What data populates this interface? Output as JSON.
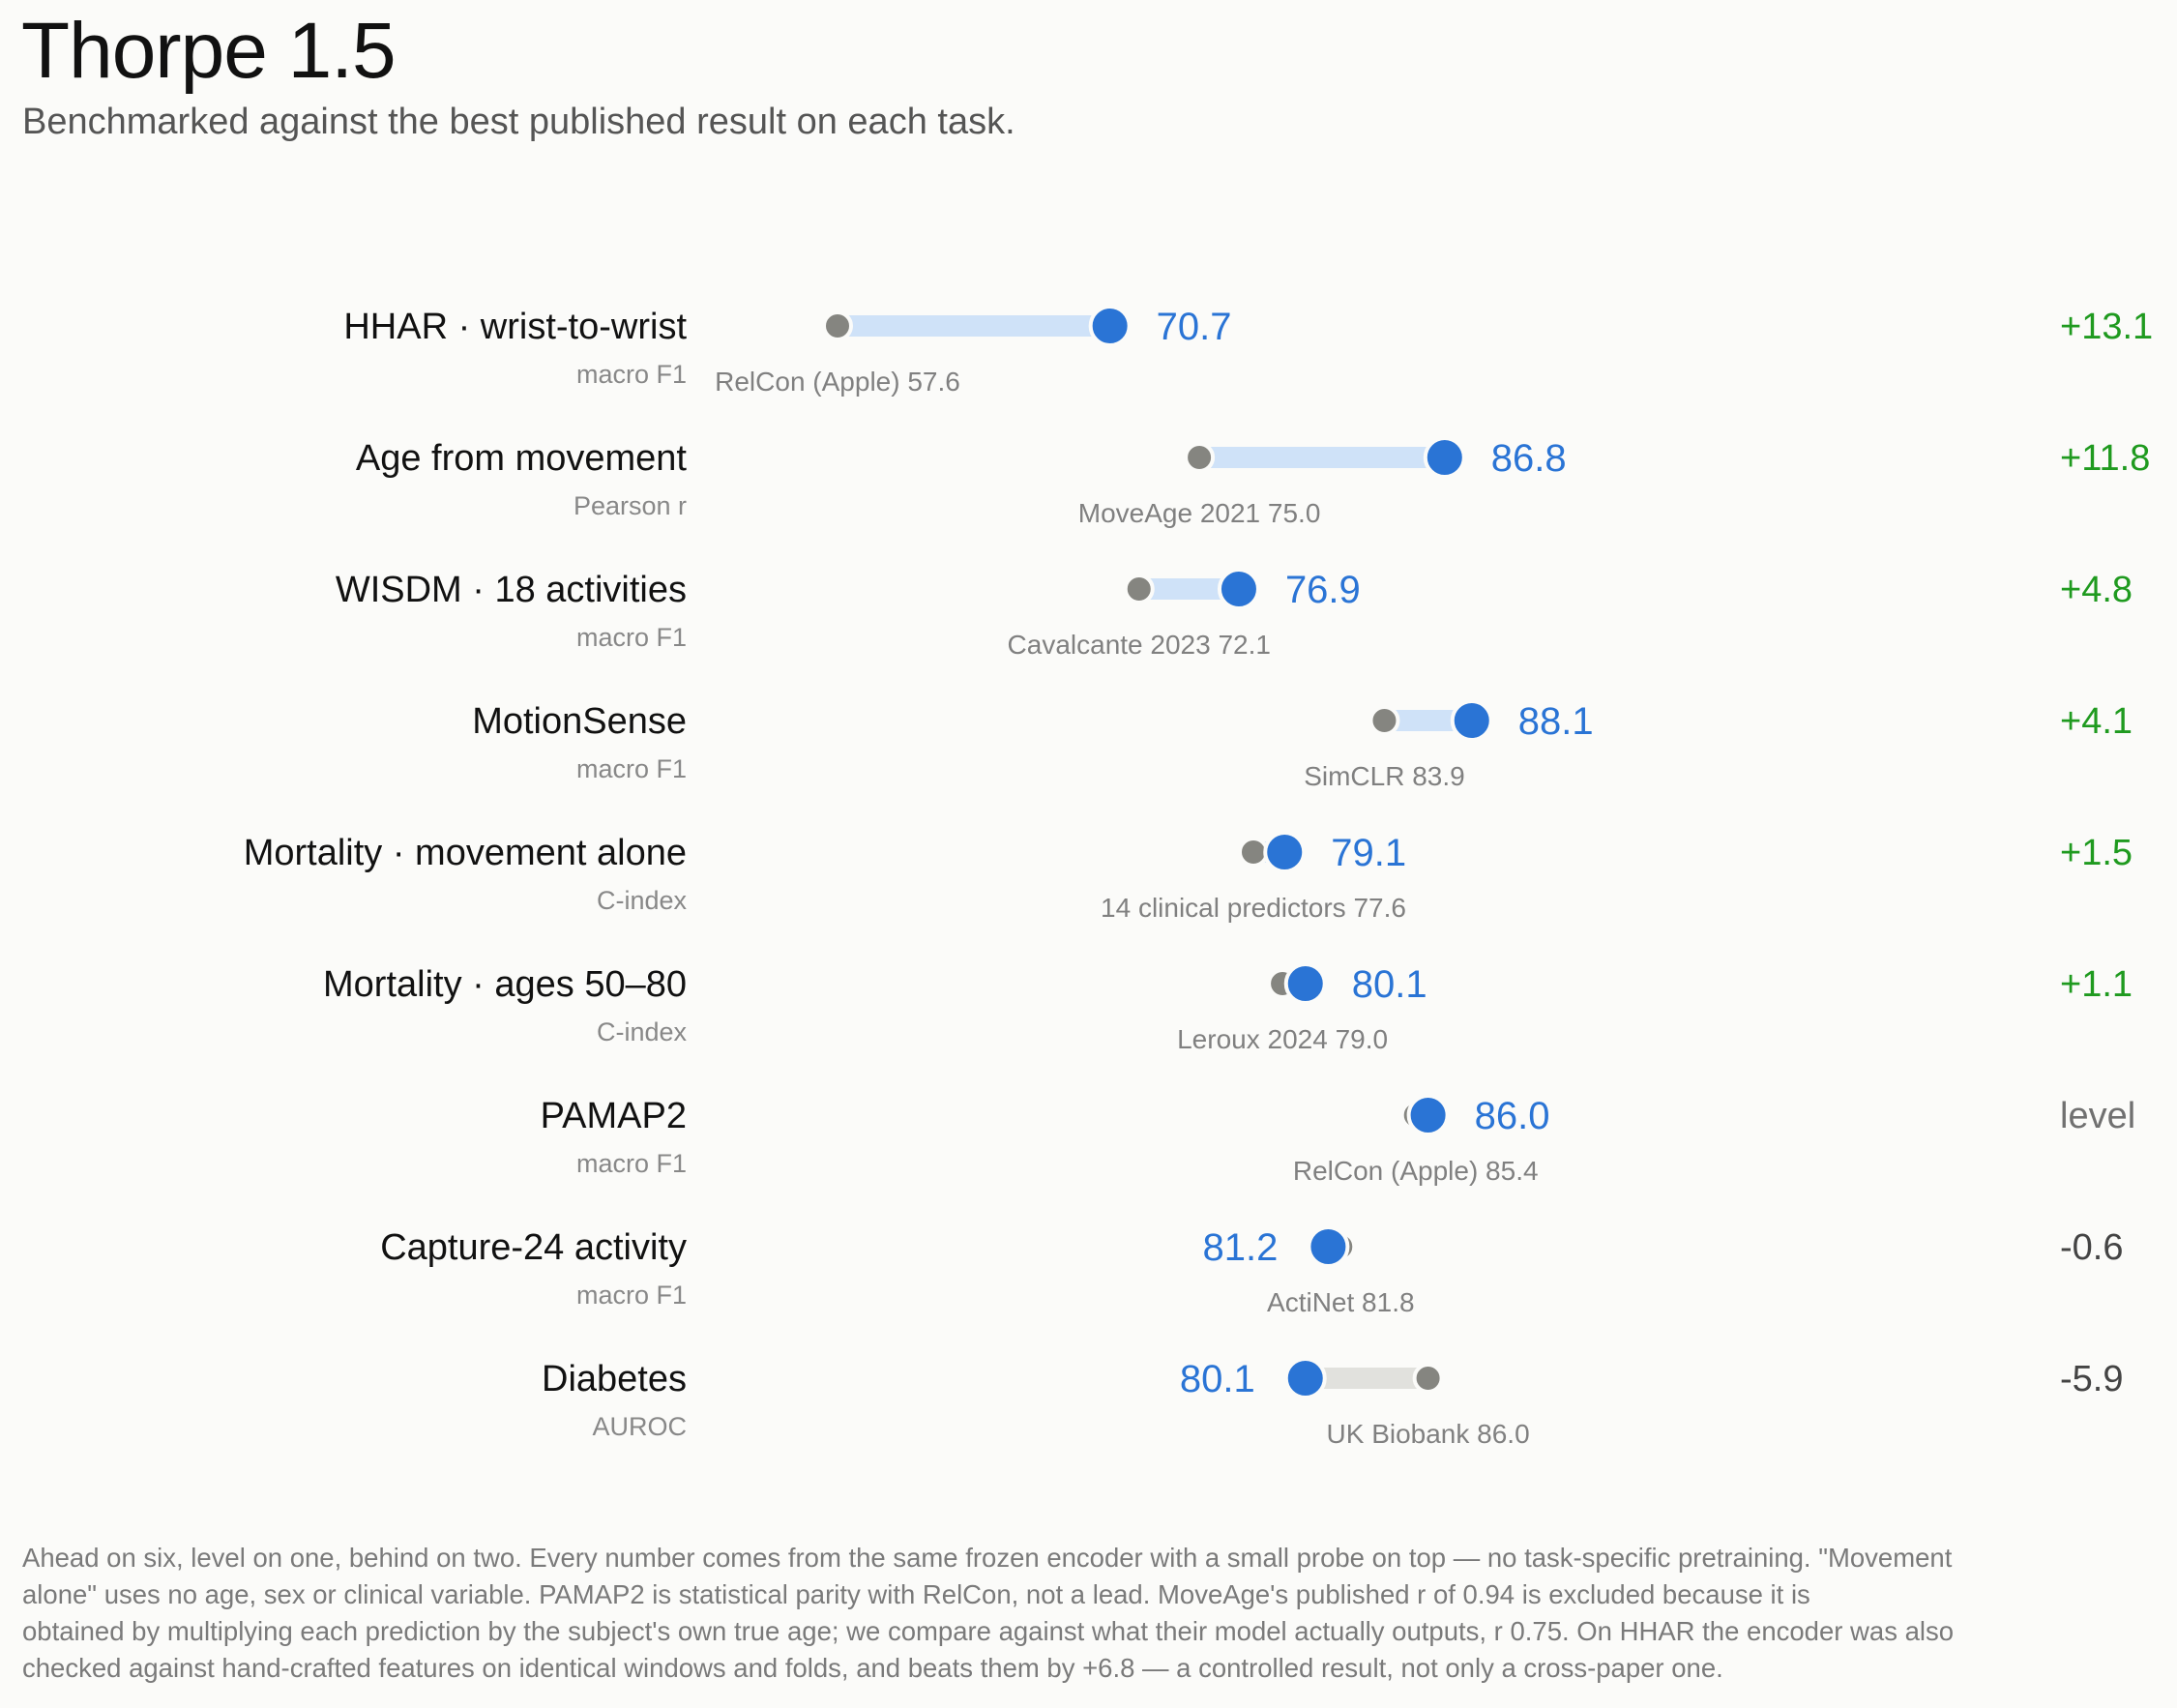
{
  "header": {
    "title": "Thorpe 1.5",
    "subtitle": "Benchmarked against the best published result on each task."
  },
  "colors": {
    "ours": "#2a74d5",
    "reference": "#858580",
    "gain_bar": "#cfe2f8",
    "loss_bar": "#e1e1dd",
    "positive_delta": "#1f9a1f",
    "neutral_delta": "#707070",
    "negative_delta": "#444444"
  },
  "chart_data": {
    "type": "dumbbell",
    "title": "Thorpe 1.5",
    "subtitle": "Benchmarked against the best published result on each task.",
    "xlim": [
      50,
      92
    ],
    "series": [
      {
        "name": "Thorpe 1.5",
        "role": "ours"
      },
      {
        "name": "Best published",
        "role": "reference"
      }
    ],
    "rows": [
      {
        "task": "HHAR · wrist-to-wrist",
        "metric": "macro F1",
        "ours": 70.7,
        "ours_label": "70.7",
        "reference": 57.6,
        "reference_label": "RelCon (Apple) 57.6",
        "delta": "+13.1",
        "status": "ahead"
      },
      {
        "task": "Age from movement",
        "metric": "Pearson r",
        "ours": 86.8,
        "ours_label": "86.8",
        "reference": 75.0,
        "reference_label": "MoveAge 2021 75.0",
        "delta": "+11.8",
        "status": "ahead"
      },
      {
        "task": "WISDM · 18 activities",
        "metric": "macro F1",
        "ours": 76.9,
        "ours_label": "76.9",
        "reference": 72.1,
        "reference_label": "Cavalcante 2023 72.1",
        "delta": "+4.8",
        "status": "ahead"
      },
      {
        "task": "MotionSense",
        "metric": "macro F1",
        "ours": 88.1,
        "ours_label": "88.1",
        "reference": 83.9,
        "reference_label": "SimCLR 83.9",
        "delta": "+4.1",
        "status": "ahead"
      },
      {
        "task": "Mortality · movement alone",
        "metric": "C-index",
        "ours": 79.1,
        "ours_label": "79.1",
        "reference": 77.6,
        "reference_label": "14 clinical predictors 77.6",
        "delta": "+1.5",
        "status": "ahead"
      },
      {
        "task": "Mortality · ages 50–80",
        "metric": "C-index",
        "ours": 80.1,
        "ours_label": "80.1",
        "reference": 79.0,
        "reference_label": "Leroux 2024 79.0",
        "delta": "+1.1",
        "status": "ahead"
      },
      {
        "task": "PAMAP2",
        "metric": "macro F1",
        "ours": 86.0,
        "ours_label": "86.0",
        "reference": 85.4,
        "reference_label": "RelCon (Apple) 85.4",
        "delta": "level",
        "status": "level"
      },
      {
        "task": "Capture-24 activity",
        "metric": "macro F1",
        "ours": 81.2,
        "ours_label": "81.2",
        "reference": 81.8,
        "reference_label": "ActiNet 81.8",
        "delta": "-0.6",
        "status": "behind"
      },
      {
        "task": "Diabetes",
        "metric": "AUROC",
        "ours": 80.1,
        "ours_label": "80.1",
        "reference": 86.0,
        "reference_label": "UK Biobank 86.0",
        "delta": "-5.9",
        "status": "behind"
      }
    ]
  },
  "footnote": {
    "lines": [
      "Ahead on six, level on one, behind on two. Every number comes from the same frozen encoder with a small probe on top — no task-specific pretraining. \"Movement",
      "alone\" uses no age, sex or clinical variable. PAMAP2 is statistical parity with RelCon, not a lead. MoveAge's published r of 0.94 is excluded because it is",
      "obtained by multiplying each prediction by the subject's own true age; we compare against what their model actually outputs, r 0.75. On HHAR the encoder was also",
      "checked against hand-crafted features on identical windows and folds, and beats them by +6.8 — a controlled result, not only a cross-paper one."
    ]
  }
}
